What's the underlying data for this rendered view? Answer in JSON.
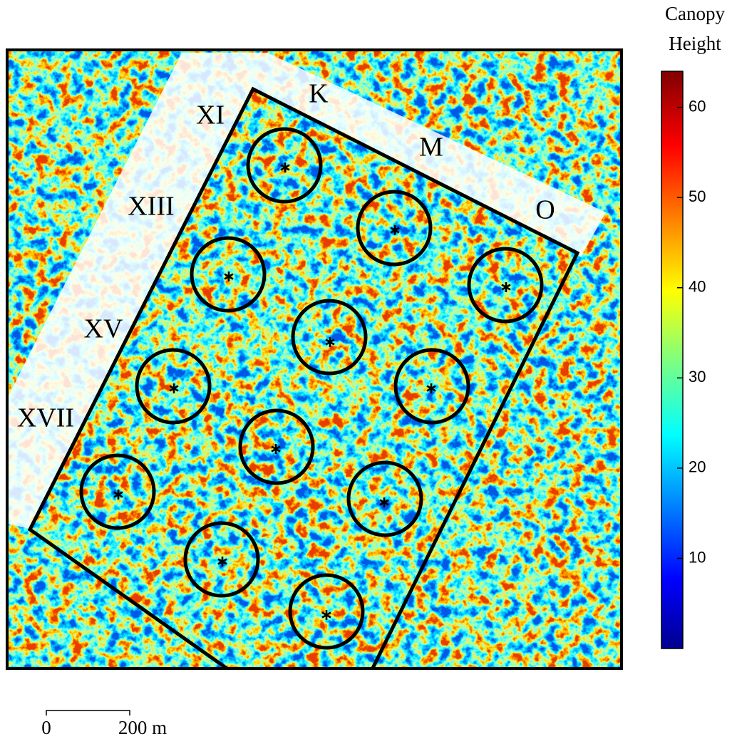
{
  "map": {
    "labels": [
      "XI",
      "K",
      "M",
      "O",
      "XIII",
      "XV",
      "XVII"
    ],
    "colorbar": {
      "title": [
        "Canopy",
        "Height"
      ],
      "lim": [
        0,
        64
      ],
      "ticks": [
        10,
        20,
        30,
        40,
        50,
        60
      ]
    },
    "scale_bar": {
      "labels": [
        "0",
        "200 m"
      ]
    }
  }
}
